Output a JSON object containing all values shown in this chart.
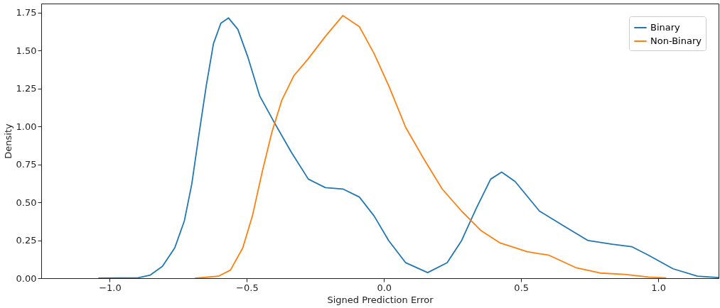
{
  "chart_data": {
    "type": "line",
    "xlabel": "Signed Prediction Error",
    "ylabel": "Density",
    "xlim": [
      -1.25,
      1.22
    ],
    "xticks": [
      {
        "value": -1.0,
        "label": "−1.0"
      },
      {
        "value": -0.5,
        "label": "−0.5"
      },
      {
        "value": 0.0,
        "label": "0.0"
      },
      {
        "value": 0.5,
        "label": "0.5"
      },
      {
        "value": 1.0,
        "label": "1.0"
      }
    ],
    "ylim": [
      0,
      1.81
    ],
    "yticks": [
      {
        "value": 0,
        "label": "0.00"
      },
      {
        "value": 0.25,
        "label": "0.25"
      },
      {
        "value": 0.5,
        "label": "0.50"
      },
      {
        "value": 0.75,
        "label": "0.75"
      },
      {
        "value": 1.0,
        "label": "1.00"
      },
      {
        "value": 1.25,
        "label": "1.25"
      },
      {
        "value": 1.5,
        "label": "1.50"
      },
      {
        "value": 1.75,
        "label": "1.75"
      }
    ],
    "grid": false,
    "legend": "top right",
    "marker": "none",
    "line_style": "solid",
    "series": [
      {
        "name": "Binary",
        "color": "#1f77b4",
        "x": [
          -1.04,
          -0.896,
          -0.852,
          -0.808,
          -0.763,
          -0.728,
          -0.701,
          -0.675,
          -0.648,
          -0.622,
          -0.595,
          -0.567,
          -0.533,
          -0.497,
          -0.453,
          -0.4,
          -0.338,
          -0.276,
          -0.214,
          -0.15,
          -0.09,
          -0.036,
          0.017,
          0.079,
          0.159,
          0.23,
          0.283,
          0.336,
          0.389,
          0.429,
          0.478,
          0.567,
          0.655,
          0.744,
          0.832,
          0.903,
          0.965,
          1.054,
          1.143,
          1.22
        ],
        "values": [
          0.0,
          0.003,
          0.021,
          0.078,
          0.2,
          0.378,
          0.62,
          0.945,
          1.27,
          1.545,
          1.68,
          1.715,
          1.64,
          1.46,
          1.2,
          1.026,
          0.83,
          0.653,
          0.597,
          0.588,
          0.535,
          0.41,
          0.248,
          0.102,
          0.037,
          0.102,
          0.248,
          0.459,
          0.653,
          0.699,
          0.637,
          0.442,
          0.345,
          0.248,
          0.224,
          0.208,
          0.151,
          0.062,
          0.013,
          0.004
        ]
      },
      {
        "name": "Non-Binary",
        "color": "#ff7f0e",
        "x": [
          -0.688,
          -0.604,
          -0.56,
          -0.515,
          -0.48,
          -0.444,
          -0.409,
          -0.373,
          -0.329,
          -0.276,
          -0.214,
          -0.15,
          -0.09,
          -0.036,
          0.017,
          0.079,
          0.141,
          0.212,
          0.283,
          0.354,
          0.424,
          0.522,
          0.602,
          0.699,
          0.788,
          0.877,
          0.965,
          1.027
        ],
        "values": [
          0.0,
          0.013,
          0.053,
          0.2,
          0.41,
          0.702,
          0.961,
          1.172,
          1.334,
          1.447,
          1.593,
          1.731,
          1.658,
          1.48,
          1.269,
          0.994,
          0.799,
          0.588,
          0.442,
          0.313,
          0.232,
          0.175,
          0.151,
          0.07,
          0.034,
          0.025,
          0.008,
          0.002
        ]
      }
    ]
  }
}
